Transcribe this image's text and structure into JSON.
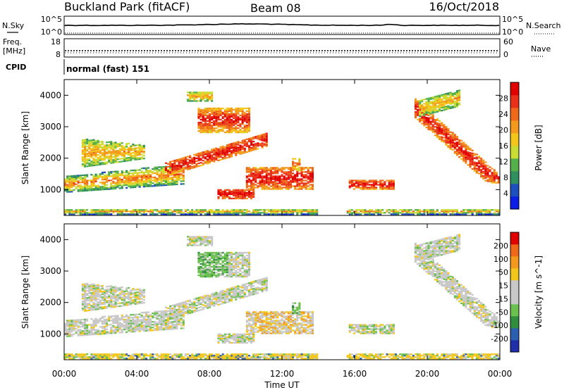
{
  "header": {
    "radar": "Buckland Park (fitACF)",
    "beam": "Beam 08",
    "date": "16/Oct/2018"
  },
  "noise_panel": {
    "left_label": "N.Sky",
    "left_top": "10^5",
    "left_bottom": "10^0",
    "right_top": "10^5",
    "right_bottom": "10^0",
    "right_label": "N.Search"
  },
  "freq_panel": {
    "left_label_1": "Freq.",
    "left_label_2": "[MHz]",
    "left_top": "18",
    "left_bottom": "8",
    "right_top": "60",
    "right_bottom": "0",
    "right_label": "Nave"
  },
  "cpid_panel": {
    "label": "CPID",
    "mode": "normal (fast) 151"
  },
  "chart_data": [
    {
      "type": "heatmap",
      "title": "",
      "ylabel": "Slant Range [km]",
      "xlim": [
        "00:00",
        "24:00"
      ],
      "ylim": [
        180,
        4500
      ],
      "y_ticks": [
        1000,
        2000,
        3000,
        4000
      ],
      "colorbar": {
        "label": "Power [dB]",
        "ticks": [
          "4",
          "8",
          "12",
          "16",
          "20",
          "24",
          "28"
        ],
        "range": [
          0,
          32
        ],
        "colors": [
          "#0a1ee6",
          "#1f4fbf",
          "#2f8f5f",
          "#56b04a",
          "#c8dc34",
          "#f2c61a",
          "#f39a1c",
          "#f0691a",
          "#e8301a",
          "#e00000"
        ]
      },
      "regions": [
        {
          "t_start": 0.0,
          "t_end": 24.0,
          "r_start": 200,
          "r_end": 400,
          "level": "ground scatter band"
        },
        {
          "t_start": 0.0,
          "t_end": 6.5,
          "r_start": 900,
          "r_end": 1600,
          "level": "12-24 dB"
        },
        {
          "t_start": 5.5,
          "t_end": 11.0,
          "r_start": 1500,
          "r_end": 3600,
          "level": "20-32 dB"
        },
        {
          "t_start": 8.5,
          "t_end": 10.5,
          "r_start": 700,
          "r_end": 1000,
          "level": "24-32 dB"
        },
        {
          "t_start": 10.0,
          "t_end": 13.8,
          "r_start": 1000,
          "r_end": 1700,
          "level": "20-32 dB"
        },
        {
          "t_start": 15.7,
          "t_end": 18.2,
          "r_start": 1000,
          "r_end": 1300,
          "level": "20-32 dB"
        },
        {
          "t_start": 19.5,
          "t_end": 24.0,
          "r_start": 1200,
          "r_end": 4000,
          "level": "20-32 dB"
        }
      ]
    },
    {
      "type": "heatmap",
      "title": "",
      "xlabel": "Time UT",
      "ylabel": "Slant Range [km]",
      "xlim": [
        "00:00",
        "24:00"
      ],
      "ylim": [
        180,
        4500
      ],
      "x_ticks": [
        "00:00",
        "04:00",
        "08:00",
        "12:00",
        "16:00",
        "20:00",
        "00:00"
      ],
      "y_ticks": [
        1000,
        2000,
        3000,
        4000
      ],
      "colorbar": {
        "label": "Velocity [m s^-1]",
        "ticks": [
          "200",
          "100",
          "50",
          "15",
          "-15",
          "-50",
          "-100",
          "-200"
        ],
        "colors": [
          "#1e2fa8",
          "#2c5fb0",
          "#2f8f3f",
          "#6cc050",
          "#c8c8c8",
          "#c8c8c8",
          "#f2c61a",
          "#f39a1c",
          "#f0691a",
          "#e00000"
        ]
      }
    }
  ]
}
